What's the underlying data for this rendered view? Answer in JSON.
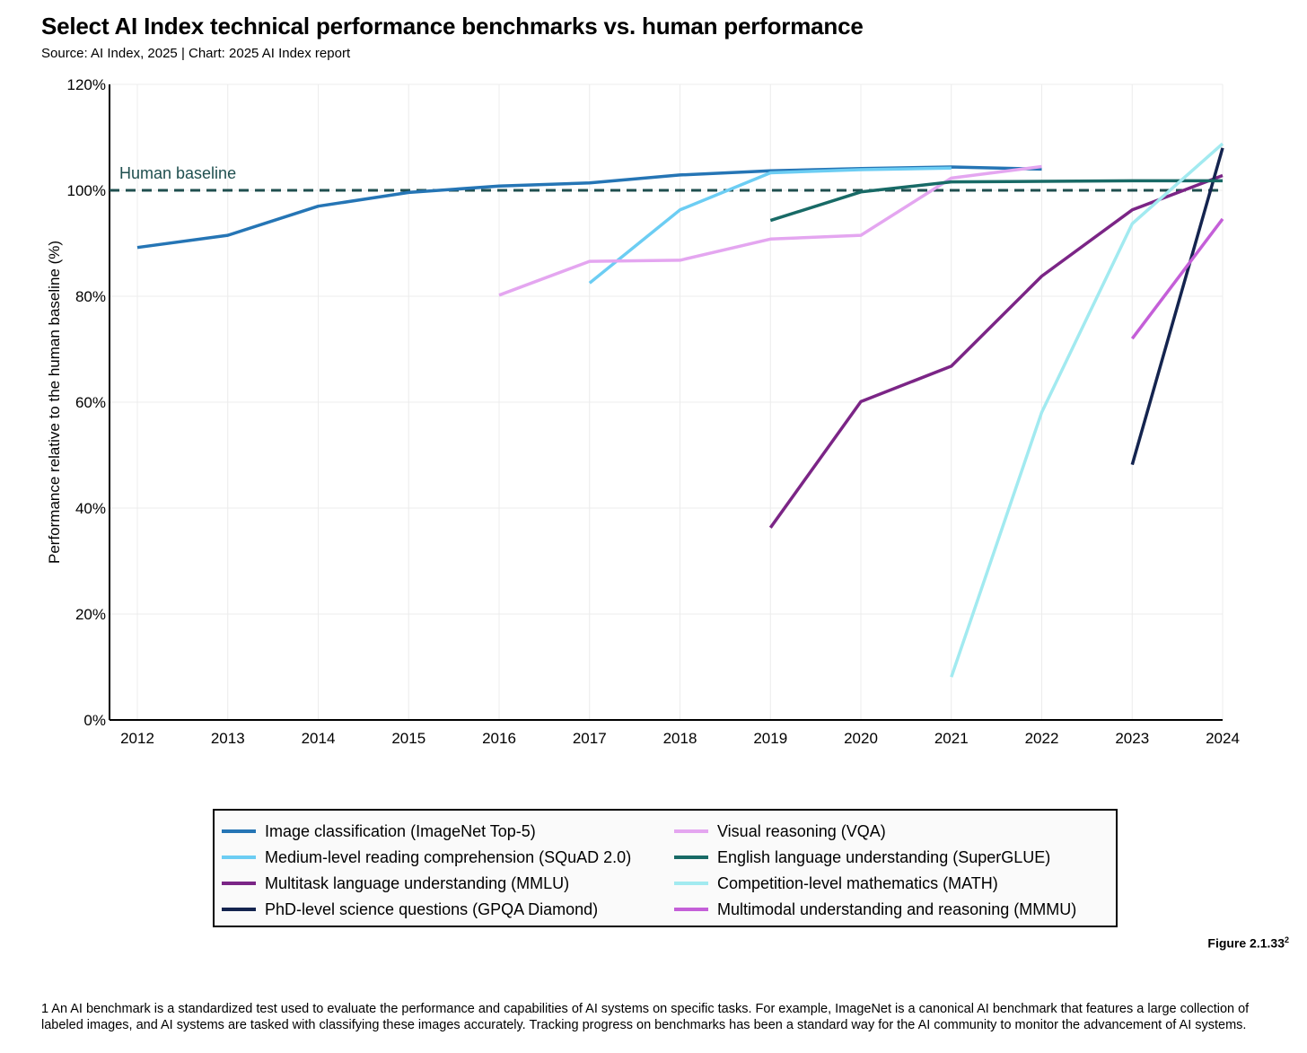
{
  "title": "Select AI Index technical performance benchmarks vs. human performance",
  "subtitle": "Source: AI Index, 2025 | Chart: 2025 AI Index report",
  "figure_label": "Figure 2.1.33",
  "figure_label_sup": "2",
  "footnote": "1  An AI benchmark is a standardized test used to evaluate the performance and capabilities of AI systems on specific tasks. For example, ImageNet is a canonical AI benchmark that features a large collection of labeled images, and AI systems are tasked with classifying these images accurately. Tracking progress on benchmarks has been a standard way for the AI community to monitor the advancement of AI systems.",
  "chart_data": {
    "type": "line",
    "title": "Select AI Index technical performance benchmarks vs. human performance",
    "xlabel": "",
    "ylabel": "Performance relative to the human baseline (%)",
    "x_ticks": [
      "2012",
      "2013",
      "2014",
      "2015",
      "2016",
      "2017",
      "2018",
      "2019",
      "2020",
      "2021",
      "2022",
      "2023",
      "2024"
    ],
    "y_ticks": [
      "0%",
      "20%",
      "40%",
      "60%",
      "80%",
      "100%",
      "120%"
    ],
    "xlim": [
      2012,
      2024
    ],
    "ylim": [
      0,
      120
    ],
    "grid": true,
    "legend_position": "bottom",
    "baseline": {
      "label": "Human baseline",
      "value": 100,
      "color": "#1f4f4f"
    },
    "series": [
      {
        "name": "Image classification (ImageNet Top-5)",
        "color": "#2575b5",
        "points": [
          [
            2012,
            89.2
          ],
          [
            2013,
            91.5
          ],
          [
            2014,
            97
          ],
          [
            2015,
            99.6
          ],
          [
            2016,
            100.8
          ],
          [
            2017,
            101.4
          ],
          [
            2018,
            102.9
          ],
          [
            2019,
            103.7
          ],
          [
            2020,
            104.1
          ],
          [
            2021,
            104.4
          ],
          [
            2022,
            104
          ]
        ]
      },
      {
        "name": "Medium-level reading comprehension (SQuAD 2.0)",
        "color": "#6ccdf3",
        "points": [
          [
            2017,
            82.5
          ],
          [
            2018,
            96.3
          ],
          [
            2019,
            103.3
          ],
          [
            2020,
            103.9
          ],
          [
            2021,
            104.2
          ]
        ]
      },
      {
        "name": "Multitask language understanding (MMLU)",
        "color": "#7b2586",
        "points": [
          [
            2019,
            36.3
          ],
          [
            2020,
            60.1
          ],
          [
            2021,
            66.8
          ],
          [
            2022,
            83.8
          ],
          [
            2023,
            96.3
          ],
          [
            2024,
            102.8
          ]
        ]
      },
      {
        "name": "PhD-level science questions (GPQA Diamond)",
        "color": "#14244f",
        "points": [
          [
            2023,
            48.2
          ],
          [
            2024,
            108
          ]
        ]
      },
      {
        "name": "Visual reasoning (VQA)",
        "color": "#e4a6f0",
        "points": [
          [
            2016,
            80.2
          ],
          [
            2017,
            86.6
          ],
          [
            2018,
            86.8
          ],
          [
            2019,
            90.8
          ],
          [
            2020,
            91.5
          ],
          [
            2021,
            102.3
          ],
          [
            2022,
            104.5
          ]
        ]
      },
      {
        "name": "English language understanding (SuperGLUE)",
        "color": "#186a66",
        "points": [
          [
            2019,
            94.3
          ],
          [
            2020,
            99.7
          ],
          [
            2021,
            101.6
          ],
          [
            2022,
            101.7
          ],
          [
            2023,
            101.8
          ],
          [
            2024,
            101.8
          ]
        ]
      },
      {
        "name": "Competition-level mathematics (MATH)",
        "color": "#a2eaf0",
        "points": [
          [
            2021,
            8.1
          ],
          [
            2022,
            58.1
          ],
          [
            2023,
            93.7
          ],
          [
            2024,
            108.8
          ]
        ]
      },
      {
        "name": "Multimodal understanding and reasoning (MMMU)",
        "color": "#c45fd8",
        "points": [
          [
            2023,
            72
          ],
          [
            2024,
            94.6
          ]
        ]
      }
    ]
  }
}
